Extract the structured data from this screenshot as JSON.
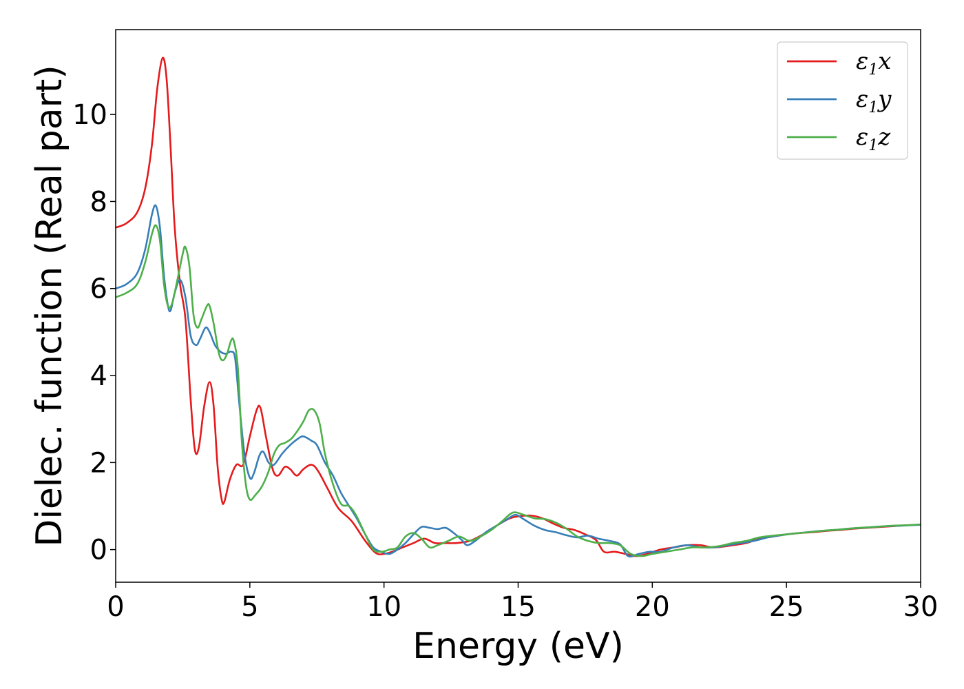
{
  "chart_data": {
    "type": "line",
    "xlabel": "Energy (eV)",
    "ylabel": "Dielec. function (Real part)",
    "xlim": [
      0,
      30
    ],
    "ylim": [
      -0.75,
      11.95
    ],
    "xticks": [
      "0",
      "5",
      "10",
      "15",
      "20",
      "25",
      "30"
    ],
    "yticks": [
      "0",
      "2",
      "4",
      "6",
      "8",
      "10"
    ],
    "grid": false,
    "legend_position": "top-right",
    "series": [
      {
        "name": "ε1x",
        "legend_base": "ε",
        "legend_sub": "1",
        "legend_var": "x",
        "color": "#e41a1c",
        "points": [
          [
            0,
            7.4
          ],
          [
            0.4,
            7.5
          ],
          [
            0.8,
            7.75
          ],
          [
            1.1,
            8.3
          ],
          [
            1.35,
            9.3
          ],
          [
            1.55,
            10.6
          ],
          [
            1.75,
            11.3
          ],
          [
            1.9,
            10.8
          ],
          [
            2.05,
            9.2
          ],
          [
            2.2,
            7.4
          ],
          [
            2.4,
            6.1
          ],
          [
            2.6,
            5.3
          ],
          [
            2.8,
            3.4
          ],
          [
            2.95,
            2.3
          ],
          [
            3.1,
            2.35
          ],
          [
            3.3,
            3.3
          ],
          [
            3.5,
            3.85
          ],
          [
            3.65,
            3.3
          ],
          [
            3.8,
            1.9
          ],
          [
            3.95,
            1.15
          ],
          [
            4.05,
            1.1
          ],
          [
            4.25,
            1.6
          ],
          [
            4.5,
            1.95
          ],
          [
            4.75,
            1.95
          ],
          [
            5.0,
            2.6
          ],
          [
            5.25,
            3.2
          ],
          [
            5.4,
            3.25
          ],
          [
            5.6,
            2.6
          ],
          [
            5.85,
            1.85
          ],
          [
            6.05,
            1.7
          ],
          [
            6.3,
            1.9
          ],
          [
            6.5,
            1.85
          ],
          [
            6.75,
            1.7
          ],
          [
            7.0,
            1.85
          ],
          [
            7.3,
            1.95
          ],
          [
            7.55,
            1.8
          ],
          [
            7.9,
            1.4
          ],
          [
            8.3,
            0.95
          ],
          [
            8.8,
            0.65
          ],
          [
            9.3,
            0.2
          ],
          [
            9.7,
            -0.08
          ],
          [
            10.0,
            -0.1
          ],
          [
            10.3,
            -0.05
          ],
          [
            10.7,
            0.05
          ],
          [
            11.1,
            0.15
          ],
          [
            11.5,
            0.25
          ],
          [
            11.9,
            0.15
          ],
          [
            12.3,
            0.15
          ],
          [
            12.7,
            0.15
          ],
          [
            13.2,
            0.2
          ],
          [
            13.7,
            0.35
          ],
          [
            14.2,
            0.55
          ],
          [
            14.7,
            0.72
          ],
          [
            15.1,
            0.77
          ],
          [
            15.5,
            0.78
          ],
          [
            15.9,
            0.72
          ],
          [
            16.3,
            0.6
          ],
          [
            16.7,
            0.5
          ],
          [
            17.1,
            0.45
          ],
          [
            17.5,
            0.35
          ],
          [
            17.9,
            0.22
          ],
          [
            18.2,
            -0.05
          ],
          [
            18.6,
            -0.05
          ],
          [
            19.0,
            -0.1
          ],
          [
            19.4,
            -0.15
          ],
          [
            19.8,
            -0.1
          ],
          [
            20.3,
            0.0
          ],
          [
            20.8,
            0.05
          ],
          [
            21.3,
            0.1
          ],
          [
            21.8,
            0.1
          ],
          [
            22.3,
            0.05
          ],
          [
            23.0,
            0.1
          ],
          [
            23.5,
            0.15
          ],
          [
            24.0,
            0.25
          ],
          [
            24.5,
            0.3
          ],
          [
            25.0,
            0.35
          ],
          [
            25.5,
            0.38
          ],
          [
            26.0,
            0.4
          ],
          [
            26.5,
            0.43
          ],
          [
            27.0,
            0.45
          ],
          [
            27.5,
            0.48
          ],
          [
            28.0,
            0.5
          ],
          [
            28.5,
            0.52
          ],
          [
            29.0,
            0.54
          ],
          [
            29.5,
            0.56
          ],
          [
            30.0,
            0.57
          ]
        ]
      },
      {
        "name": "ε1y",
        "legend_base": "ε",
        "legend_sub": "1",
        "legend_var": "y",
        "color": "#377eb8",
        "points": [
          [
            0,
            6.0
          ],
          [
            0.4,
            6.1
          ],
          [
            0.8,
            6.35
          ],
          [
            1.1,
            6.9
          ],
          [
            1.35,
            7.7
          ],
          [
            1.5,
            7.9
          ],
          [
            1.65,
            7.4
          ],
          [
            1.8,
            6.3
          ],
          [
            1.95,
            5.6
          ],
          [
            2.05,
            5.5
          ],
          [
            2.2,
            5.9
          ],
          [
            2.4,
            6.2
          ],
          [
            2.6,
            5.8
          ],
          [
            2.8,
            4.9
          ],
          [
            3.0,
            4.7
          ],
          [
            3.15,
            4.85
          ],
          [
            3.35,
            5.1
          ],
          [
            3.5,
            5.0
          ],
          [
            3.7,
            4.7
          ],
          [
            3.9,
            4.55
          ],
          [
            4.1,
            4.5
          ],
          [
            4.3,
            4.55
          ],
          [
            4.45,
            4.4
          ],
          [
            4.6,
            3.4
          ],
          [
            4.8,
            2.2
          ],
          [
            5.0,
            1.65
          ],
          [
            5.15,
            1.75
          ],
          [
            5.35,
            2.15
          ],
          [
            5.5,
            2.25
          ],
          [
            5.7,
            2.0
          ],
          [
            5.9,
            1.95
          ],
          [
            6.2,
            2.2
          ],
          [
            6.5,
            2.4
          ],
          [
            6.8,
            2.55
          ],
          [
            7.0,
            2.6
          ],
          [
            7.3,
            2.5
          ],
          [
            7.5,
            2.4
          ],
          [
            7.8,
            2.0
          ],
          [
            8.1,
            1.7
          ],
          [
            8.4,
            1.3
          ],
          [
            8.7,
            1.0
          ],
          [
            9.0,
            0.7
          ],
          [
            9.3,
            0.35
          ],
          [
            9.6,
            0.05
          ],
          [
            9.9,
            -0.05
          ],
          [
            10.2,
            -0.1
          ],
          [
            10.5,
            0.0
          ],
          [
            10.8,
            0.15
          ],
          [
            11.1,
            0.35
          ],
          [
            11.4,
            0.52
          ],
          [
            11.7,
            0.5
          ],
          [
            12.0,
            0.47
          ],
          [
            12.3,
            0.5
          ],
          [
            12.6,
            0.38
          ],
          [
            12.9,
            0.22
          ],
          [
            13.1,
            0.1
          ],
          [
            13.4,
            0.2
          ],
          [
            13.8,
            0.4
          ],
          [
            14.2,
            0.55
          ],
          [
            14.6,
            0.7
          ],
          [
            14.9,
            0.8
          ],
          [
            15.2,
            0.7
          ],
          [
            15.6,
            0.55
          ],
          [
            16.0,
            0.45
          ],
          [
            16.4,
            0.4
          ],
          [
            16.8,
            0.33
          ],
          [
            17.2,
            0.28
          ],
          [
            17.6,
            0.32
          ],
          [
            18.0,
            0.25
          ],
          [
            18.4,
            0.2
          ],
          [
            18.8,
            0.12
          ],
          [
            19.1,
            -0.15
          ],
          [
            19.5,
            -0.1
          ],
          [
            19.9,
            -0.05
          ],
          [
            20.3,
            -0.05
          ],
          [
            20.8,
            0.05
          ],
          [
            21.3,
            0.1
          ],
          [
            21.8,
            0.05
          ],
          [
            22.3,
            0.05
          ],
          [
            22.8,
            0.1
          ],
          [
            23.3,
            0.15
          ],
          [
            23.8,
            0.2
          ],
          [
            24.3,
            0.28
          ],
          [
            24.8,
            0.33
          ],
          [
            25.3,
            0.37
          ],
          [
            25.8,
            0.4
          ],
          [
            26.3,
            0.43
          ],
          [
            26.8,
            0.45
          ],
          [
            27.3,
            0.48
          ],
          [
            27.8,
            0.5
          ],
          [
            28.3,
            0.52
          ],
          [
            28.8,
            0.54
          ],
          [
            29.3,
            0.55
          ],
          [
            30.0,
            0.57
          ]
        ]
      },
      {
        "name": "ε1z",
        "legend_base": "ε",
        "legend_sub": "1",
        "legend_var": "z",
        "color": "#4daf4a",
        "points": [
          [
            0,
            5.8
          ],
          [
            0.4,
            5.9
          ],
          [
            0.8,
            6.1
          ],
          [
            1.1,
            6.6
          ],
          [
            1.35,
            7.25
          ],
          [
            1.5,
            7.45
          ],
          [
            1.65,
            7.1
          ],
          [
            1.8,
            6.1
          ],
          [
            1.95,
            5.6
          ],
          [
            2.1,
            5.65
          ],
          [
            2.3,
            6.2
          ],
          [
            2.5,
            6.8
          ],
          [
            2.6,
            6.95
          ],
          [
            2.75,
            6.5
          ],
          [
            2.9,
            5.4
          ],
          [
            3.05,
            5.1
          ],
          [
            3.2,
            5.3
          ],
          [
            3.4,
            5.6
          ],
          [
            3.5,
            5.6
          ],
          [
            3.65,
            5.2
          ],
          [
            3.85,
            4.5
          ],
          [
            4.0,
            4.35
          ],
          [
            4.15,
            4.5
          ],
          [
            4.3,
            4.8
          ],
          [
            4.4,
            4.8
          ],
          [
            4.55,
            4.2
          ],
          [
            4.7,
            2.5
          ],
          [
            4.85,
            1.5
          ],
          [
            5.0,
            1.15
          ],
          [
            5.2,
            1.25
          ],
          [
            5.45,
            1.45
          ],
          [
            5.7,
            1.8
          ],
          [
            5.9,
            2.2
          ],
          [
            6.1,
            2.4
          ],
          [
            6.3,
            2.45
          ],
          [
            6.55,
            2.55
          ],
          [
            6.8,
            2.75
          ],
          [
            7.0,
            2.95
          ],
          [
            7.2,
            3.2
          ],
          [
            7.4,
            3.2
          ],
          [
            7.6,
            2.9
          ],
          [
            7.8,
            2.2
          ],
          [
            8.1,
            1.5
          ],
          [
            8.4,
            1.05
          ],
          [
            8.7,
            1.0
          ],
          [
            8.95,
            0.8
          ],
          [
            9.3,
            0.35
          ],
          [
            9.6,
            0.0
          ],
          [
            9.9,
            -0.05
          ],
          [
            10.2,
            0.0
          ],
          [
            10.5,
            0.05
          ],
          [
            10.8,
            0.3
          ],
          [
            11.1,
            0.38
          ],
          [
            11.4,
            0.25
          ],
          [
            11.7,
            0.05
          ],
          [
            12.0,
            0.1
          ],
          [
            12.4,
            0.2
          ],
          [
            12.8,
            0.3
          ],
          [
            13.2,
            0.2
          ],
          [
            13.6,
            0.3
          ],
          [
            14.0,
            0.45
          ],
          [
            14.4,
            0.65
          ],
          [
            14.8,
            0.85
          ],
          [
            15.2,
            0.8
          ],
          [
            15.6,
            0.72
          ],
          [
            16.0,
            0.7
          ],
          [
            16.4,
            0.62
          ],
          [
            16.8,
            0.48
          ],
          [
            17.2,
            0.3
          ],
          [
            17.6,
            0.2
          ],
          [
            18.0,
            0.15
          ],
          [
            18.4,
            0.15
          ],
          [
            18.8,
            0.1
          ],
          [
            19.2,
            -0.1
          ],
          [
            19.6,
            -0.15
          ],
          [
            20.0,
            -0.1
          ],
          [
            20.5,
            -0.05
          ],
          [
            21.0,
            0.0
          ],
          [
            21.5,
            0.05
          ],
          [
            22.0,
            0.05
          ],
          [
            22.5,
            0.08
          ],
          [
            23.0,
            0.15
          ],
          [
            23.5,
            0.2
          ],
          [
            24.0,
            0.28
          ],
          [
            24.5,
            0.32
          ],
          [
            25.0,
            0.35
          ],
          [
            25.5,
            0.38
          ],
          [
            26.0,
            0.41
          ],
          [
            26.5,
            0.44
          ],
          [
            27.0,
            0.46
          ],
          [
            27.5,
            0.49
          ],
          [
            28.0,
            0.51
          ],
          [
            28.5,
            0.53
          ],
          [
            29.0,
            0.55
          ],
          [
            29.5,
            0.56
          ],
          [
            30.0,
            0.58
          ]
        ]
      }
    ]
  }
}
